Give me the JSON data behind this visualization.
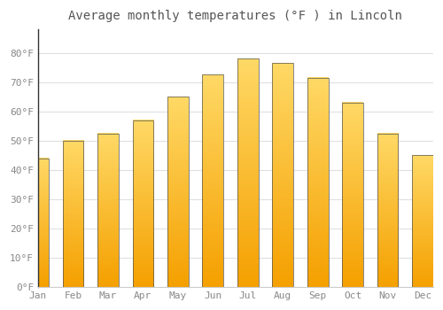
{
  "title": "Average monthly temperatures (°F ) in Lincoln",
  "months": [
    "Jan",
    "Feb",
    "Mar",
    "Apr",
    "May",
    "Jun",
    "Jul",
    "Aug",
    "Sep",
    "Oct",
    "Nov",
    "Dec"
  ],
  "values": [
    44,
    50,
    52.5,
    57,
    65,
    72.5,
    78,
    76.5,
    71.5,
    63,
    52.5,
    45
  ],
  "ylim": [
    0,
    88
  ],
  "yticks": [
    0,
    10,
    20,
    30,
    40,
    50,
    60,
    70,
    80
  ],
  "ytick_labels": [
    "0°F",
    "10°F",
    "20°F",
    "30°F",
    "40°F",
    "50°F",
    "60°F",
    "70°F",
    "80°F"
  ],
  "background_color": "#ffffff",
  "grid_color": "#e0e0e0",
  "bar_bottom_color": "#F5A000",
  "bar_top_color": "#FFD966",
  "bar_edge_color": "#555555",
  "title_fontsize": 10,
  "tick_fontsize": 8,
  "tick_color": "#888888",
  "bar_width": 0.6
}
